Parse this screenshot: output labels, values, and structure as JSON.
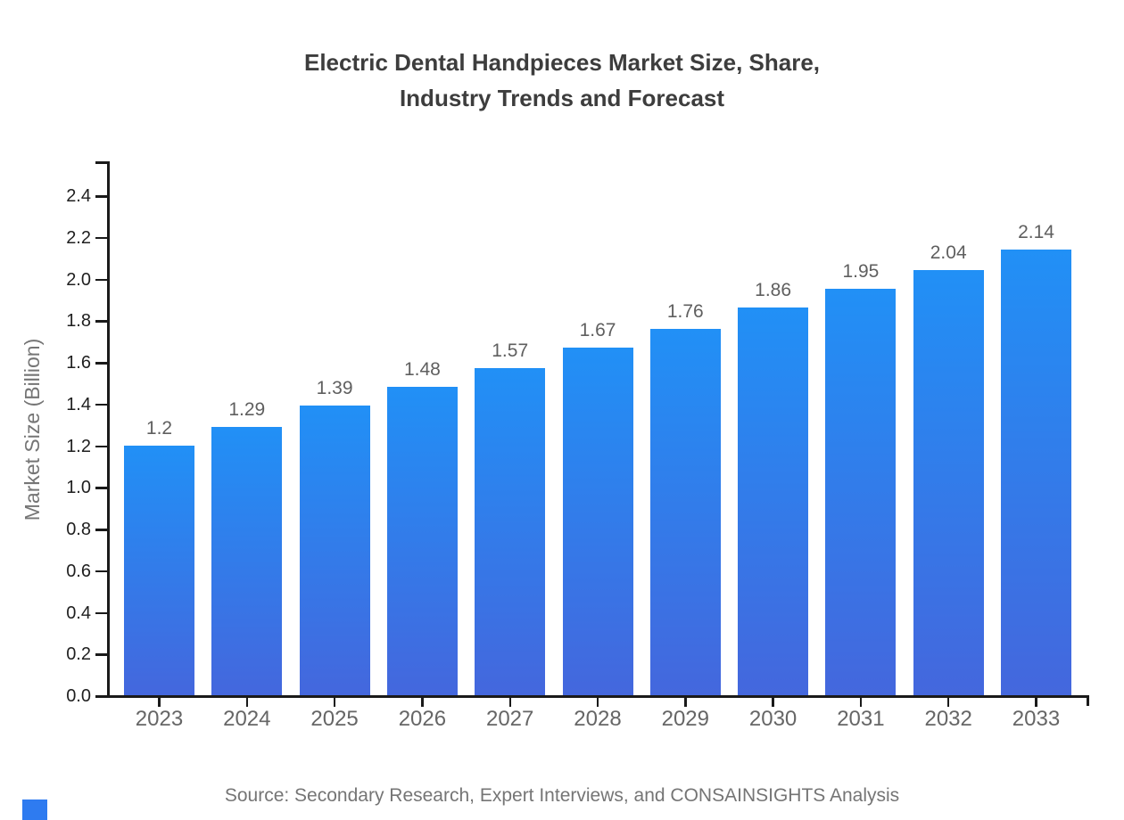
{
  "title_lines": [
    "Electric Dental Handpieces Market Size, Share,",
    "Industry Trends and Forecast"
  ],
  "source_note": "Source: Secondary Research, Expert Interviews, and CONSAINSIGHTS Analysis",
  "colors": {
    "background": "#ffffff",
    "axis": "#1a1a1a",
    "title_text": "#3d3d3d",
    "y_tick_label": "#1f1f1f",
    "x_tick_label": "#666666",
    "value_label": "#5f5f5f",
    "muted_text": "#757575",
    "bar_gradient_top": "#2190f6",
    "bar_gradient_bottom": "#4467dd",
    "brand_mark": "#2e7bf0"
  },
  "chart_data": {
    "type": "bar",
    "title": "Electric Dental Handpieces Market Size, Share, Industry Trends and Forecast",
    "categories": [
      "2023",
      "2024",
      "2025",
      "2026",
      "2027",
      "2028",
      "2029",
      "2030",
      "2031",
      "2032",
      "2033"
    ],
    "values": [
      1.2,
      1.29,
      1.39,
      1.48,
      1.57,
      1.67,
      1.76,
      1.86,
      1.95,
      2.04,
      2.14
    ],
    "value_labels": [
      "1.2",
      "1.29",
      "1.39",
      "1.48",
      "1.57",
      "1.67",
      "1.76",
      "1.86",
      "1.95",
      "2.04",
      "2.14"
    ],
    "xlabel": "",
    "ylabel": "Market Size (Billion)",
    "ylim": [
      0.0,
      2.56
    ],
    "yticks": [
      0.0,
      0.2,
      0.4,
      0.6,
      0.8,
      1.0,
      1.2,
      1.4,
      1.6,
      1.8,
      2.0,
      2.2,
      2.4
    ],
    "ytick_labels": [
      "0.0",
      "0.2",
      "0.4",
      "0.6",
      "0.8",
      "1.0",
      "1.2",
      "1.4",
      "1.6",
      "1.8",
      "2.0",
      "2.2",
      "2.4"
    ],
    "grid": false,
    "legend": "none",
    "bar_gradient": [
      "#2190f6",
      "#4467dd"
    ]
  }
}
